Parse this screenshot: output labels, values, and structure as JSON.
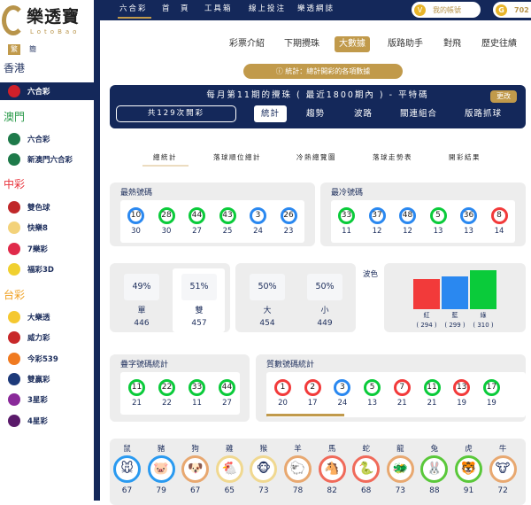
{
  "brand": {
    "name": "樂透寶",
    "sub": "LotoBao"
  },
  "lang": {
    "trad": "繁",
    "simp": "簡"
  },
  "sidebar": {
    "regions": [
      {
        "name": "香港",
        "color": "#1d2e5c",
        "items": [
          {
            "label": "六合彩",
            "icon_color": "#d0202a",
            "selected": true
          }
        ]
      },
      {
        "name": "澳門",
        "color": "#2a9a4a",
        "items": [
          {
            "label": "六合彩",
            "icon_color": "#1e7a4a"
          },
          {
            "label": "新澳門六合彩",
            "icon_color": "#1e7a4a"
          }
        ]
      },
      {
        "name": "中彩",
        "color": "#e8323a",
        "items": [
          {
            "label": "雙色球",
            "icon_color": "#c0282a"
          },
          {
            "label": "快樂8",
            "icon_color": "#f3d27a"
          },
          {
            "label": "7樂彩",
            "icon_color": "#e02a4a"
          },
          {
            "label": "福彩3D",
            "icon_color": "#f0d030"
          }
        ]
      },
      {
        "name": "台彩",
        "color": "#f0a020",
        "items": [
          {
            "label": "大樂透",
            "icon_color": "#f5c830"
          },
          {
            "label": "威力彩",
            "icon_color": "#c8282a"
          },
          {
            "label": "今彩539",
            "icon_color": "#f07a20"
          },
          {
            "label": "雙贏彩",
            "icon_color": "#1d3a7a"
          },
          {
            "label": "3星彩",
            "icon_color": "#8a2a9a"
          },
          {
            "label": "4星彩",
            "icon_color": "#5a1a6a"
          }
        ]
      }
    ]
  },
  "topnav": {
    "items": [
      "六合彩",
      "首　頁",
      "工具箱",
      "線上投注",
      "樂透網誌"
    ],
    "account": "我的帳號",
    "coins": "702"
  },
  "tabs": [
    "彩票介紹",
    "下期攪珠",
    "大數據",
    "版路助手",
    "對飛",
    "歷史往績"
  ],
  "active_tab": "大數據",
  "notice": "ⓘ 統計：總計開彩的各項數據",
  "panel": {
    "title": "每月第11期的攪珠 ( 最近1800期內 ) - 平特碼",
    "change": "更改",
    "count": "共129次開彩",
    "tabs": [
      "統計",
      "趨勢",
      "波路",
      "關連組合",
      "版路抓球"
    ]
  },
  "subtabs": [
    "總統計",
    "落球順位總計",
    "冷熱總覽圖",
    "落球走勢表",
    "開彩結果"
  ],
  "colors": {
    "red": "#f23a3a",
    "blue": "#2a88f0",
    "green": "#0acb3a",
    "gold": "#c19a4b",
    "navy": "#14285a"
  },
  "hot": {
    "title": "最熱號碼",
    "balls": [
      {
        "n": "10",
        "c": "blue",
        "v": "30"
      },
      {
        "n": "28",
        "c": "green",
        "v": "30"
      },
      {
        "n": "44",
        "c": "green",
        "v": "27"
      },
      {
        "n": "43",
        "c": "green",
        "v": "25"
      },
      {
        "n": "3",
        "c": "blue",
        "v": "24"
      },
      {
        "n": "26",
        "c": "blue",
        "v": "23"
      }
    ]
  },
  "cold": {
    "title": "最冷號碼",
    "balls": [
      {
        "n": "33",
        "c": "green",
        "v": "11"
      },
      {
        "n": "37",
        "c": "blue",
        "v": "12"
      },
      {
        "n": "48",
        "c": "blue",
        "v": "12"
      },
      {
        "n": "5",
        "c": "green",
        "v": "13"
      },
      {
        "n": "36",
        "c": "blue",
        "v": "13"
      },
      {
        "n": "8",
        "c": "red",
        "v": "14"
      }
    ]
  },
  "oddeven": [
    {
      "pct": "49%",
      "label": "單",
      "v": "446"
    },
    {
      "pct": "51%",
      "label": "雙",
      "v": "457"
    }
  ],
  "bigsmall": [
    {
      "pct": "50%",
      "label": "大",
      "v": "454"
    },
    {
      "pct": "50%",
      "label": "小",
      "v": "449"
    }
  ],
  "wave": {
    "title": "波色",
    "bars": [
      {
        "label": "紅",
        "v": 294,
        "text": "( 294 )",
        "c": "red"
      },
      {
        "label": "藍",
        "v": 299,
        "text": "( 299 )",
        "c": "blue"
      },
      {
        "label": "綠",
        "v": 310,
        "text": "( 310 )",
        "c": "green"
      }
    ]
  },
  "repeat": {
    "title": "疊字號碼統計",
    "balls": [
      {
        "n": "11",
        "c": "green",
        "v": "21"
      },
      {
        "n": "22",
        "c": "green",
        "v": "22"
      },
      {
        "n": "33",
        "c": "green",
        "v": "11"
      },
      {
        "n": "44",
        "c": "green",
        "v": "27"
      }
    ]
  },
  "prime": {
    "title": "質數號碼統計",
    "scroll_fraction": 0.52,
    "balls": [
      {
        "n": "1",
        "c": "red",
        "v": "20"
      },
      {
        "n": "2",
        "c": "red",
        "v": "17"
      },
      {
        "n": "3",
        "c": "blue",
        "v": "24"
      },
      {
        "n": "5",
        "c": "green",
        "v": "13"
      },
      {
        "n": "7",
        "c": "red",
        "v": "21"
      },
      {
        "n": "11",
        "c": "green",
        "v": "21"
      },
      {
        "n": "13",
        "c": "red",
        "v": "19"
      },
      {
        "n": "17",
        "c": "green",
        "v": "19"
      }
    ]
  },
  "zodiac": [
    {
      "name": "鼠",
      "v": "67",
      "c": "#2a9af0",
      "g": "🐭"
    },
    {
      "name": "豬",
      "v": "79",
      "c": "#2a9af0",
      "g": "🐷"
    },
    {
      "name": "狗",
      "v": "67",
      "c": "#e8a870",
      "g": "🐶"
    },
    {
      "name": "雞",
      "v": "65",
      "c": "#f0d890",
      "g": "🐔"
    },
    {
      "name": "猴",
      "v": "73",
      "c": "#f0d890",
      "g": "🐵"
    },
    {
      "name": "羊",
      "v": "78",
      "c": "#e8a870",
      "g": "🐑"
    },
    {
      "name": "馬",
      "v": "82",
      "c": "#f06a5a",
      "g": "🐴"
    },
    {
      "name": "蛇",
      "v": "68",
      "c": "#f06a5a",
      "g": "🐍"
    },
    {
      "name": "龍",
      "v": "73",
      "c": "#e8a870",
      "g": "🐲"
    },
    {
      "name": "兔",
      "v": "88",
      "c": "#5ac83a",
      "g": "🐰"
    },
    {
      "name": "虎",
      "v": "91",
      "c": "#5ac83a",
      "g": "🐯"
    },
    {
      "name": "牛",
      "v": "72",
      "c": "#e8a870",
      "g": "🐮"
    }
  ]
}
